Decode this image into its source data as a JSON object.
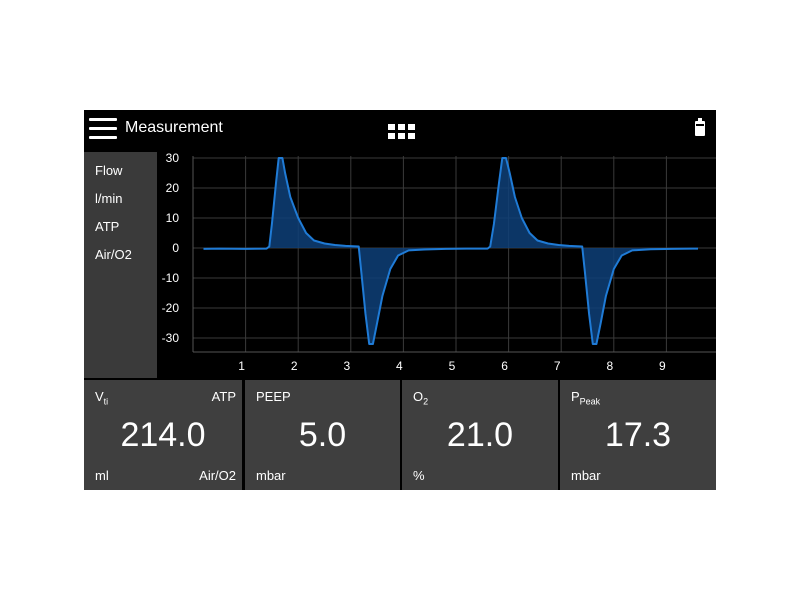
{
  "app": {
    "title": "Measurement"
  },
  "side": {
    "items": [
      "Flow",
      "l/min",
      "ATP",
      "Air/O2"
    ]
  },
  "icons": {
    "menu": "menu-icon",
    "grid": "grid-icon",
    "battery": "battery-icon"
  },
  "colors": {
    "trace": "#1f7bd6",
    "fill": "#0e3f78",
    "tile": "#3f3f3f",
    "side": "#3a3a3a"
  },
  "chart_data": {
    "type": "line",
    "y_ticks": [
      30,
      20,
      10,
      0,
      -10,
      -20,
      -30
    ],
    "x_ticks": [
      1,
      2,
      3,
      4,
      5,
      6,
      7,
      8,
      9
    ],
    "xlim": [
      0,
      10
    ],
    "ylim": [
      -33,
      33
    ],
    "grid": true,
    "series": [
      {
        "points": [
          [
            0.2,
            -0.3
          ],
          [
            0.5,
            -0.2
          ],
          [
            1.0,
            -0.3
          ],
          [
            1.4,
            -0.2
          ],
          [
            1.45,
            0.5
          ],
          [
            1.5,
            8
          ],
          [
            1.58,
            22
          ],
          [
            1.63,
            30
          ],
          [
            1.7,
            30
          ],
          [
            1.75,
            25
          ],
          [
            1.85,
            17
          ],
          [
            2.0,
            10
          ],
          [
            2.15,
            5
          ],
          [
            2.3,
            2.5
          ],
          [
            2.5,
            1.5
          ],
          [
            2.7,
            1.0
          ],
          [
            2.9,
            0.7
          ],
          [
            3.15,
            0.5
          ],
          [
            3.2,
            -8
          ],
          [
            3.28,
            -22
          ],
          [
            3.35,
            -32
          ],
          [
            3.42,
            -32
          ],
          [
            3.5,
            -25
          ],
          [
            3.6,
            -16
          ],
          [
            3.75,
            -7
          ],
          [
            3.9,
            -2.5
          ],
          [
            4.1,
            -0.8
          ],
          [
            4.4,
            -0.5
          ],
          [
            4.8,
            -0.3
          ],
          [
            5.2,
            -0.2
          ],
          [
            5.6,
            -0.2
          ],
          [
            5.65,
            0.5
          ],
          [
            5.72,
            8
          ],
          [
            5.82,
            22
          ],
          [
            5.88,
            30
          ],
          [
            5.95,
            30
          ],
          [
            6.02,
            25
          ],
          [
            6.12,
            17
          ],
          [
            6.25,
            10
          ],
          [
            6.4,
            5
          ],
          [
            6.55,
            2.5
          ],
          [
            6.75,
            1.5
          ],
          [
            6.95,
            1.0
          ],
          [
            7.15,
            0.7
          ],
          [
            7.4,
            0.5
          ],
          [
            7.45,
            -8
          ],
          [
            7.53,
            -22
          ],
          [
            7.6,
            -32
          ],
          [
            7.67,
            -32
          ],
          [
            7.75,
            -25
          ],
          [
            7.85,
            -16
          ],
          [
            8.0,
            -7
          ],
          [
            8.15,
            -2.5
          ],
          [
            8.35,
            -0.8
          ],
          [
            8.7,
            -0.4
          ],
          [
            9.1,
            -0.3
          ],
          [
            9.5,
            -0.2
          ],
          [
            9.6,
            -0.2
          ]
        ]
      }
    ]
  },
  "tiles": [
    {
      "label": "V",
      "label_sub": "ti",
      "value": "214.0",
      "unit": "ml",
      "top_right": "ATP",
      "bottom_right": "Air/O2"
    },
    {
      "label": "PEEP",
      "label_sub": "",
      "value": "5.0",
      "unit": "mbar",
      "top_right": "",
      "bottom_right": ""
    },
    {
      "label": "O",
      "label_sub": "2",
      "value": "21.0",
      "unit": "%",
      "top_right": "",
      "bottom_right": ""
    },
    {
      "label": "P",
      "label_sub": "Peak",
      "value": "17.3",
      "unit": "mbar",
      "top_right": "",
      "bottom_right": ""
    }
  ]
}
